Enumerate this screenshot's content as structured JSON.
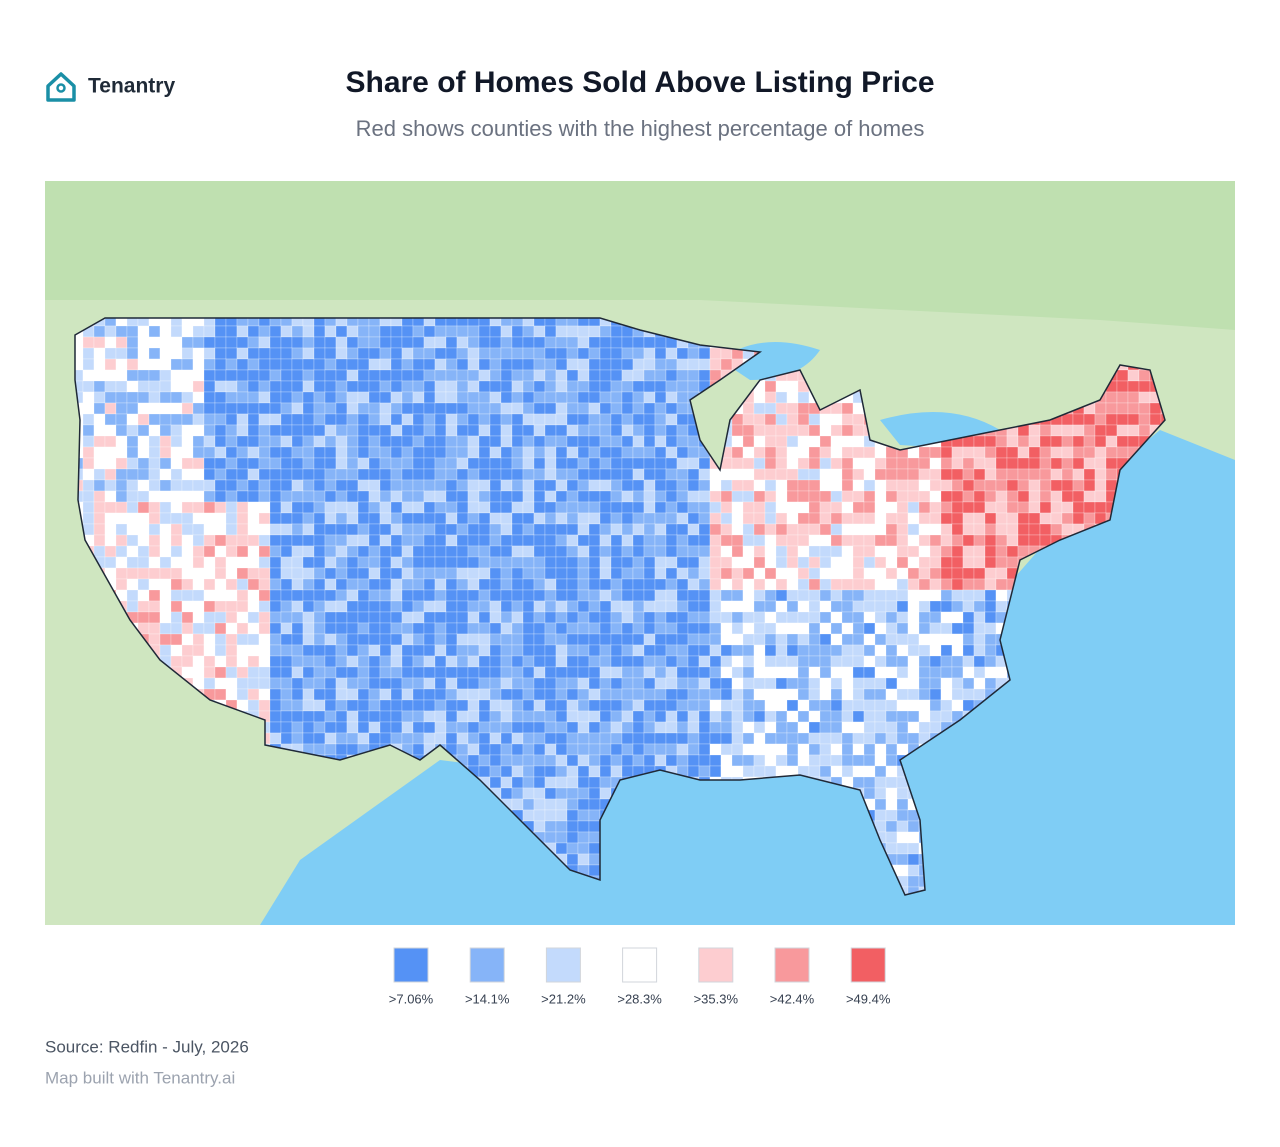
{
  "header": {
    "brand": "Tenantry",
    "title": "Share of Homes Sold Above Listing Price",
    "subtitle": "Red shows counties with the highest percentage of homes"
  },
  "legend": {
    "items": [
      {
        "label": ">7.06%",
        "color": "#5592f5"
      },
      {
        "label": ">14.1%",
        "color": "#86b4f8"
      },
      {
        "label": ">21.2%",
        "color": "#c3dafc"
      },
      {
        "label": ">28.3%",
        "color": "#ffffff"
      },
      {
        "label": ">35.3%",
        "color": "#fdcdd0"
      },
      {
        "label": ">42.4%",
        "color": "#f8999c"
      },
      {
        "label": ">49.4%",
        "color": "#f25f63"
      }
    ]
  },
  "footer": {
    "source": "Source: Redfin - July, 2026",
    "credit": "Map built with Tenantry.ai"
  }
}
